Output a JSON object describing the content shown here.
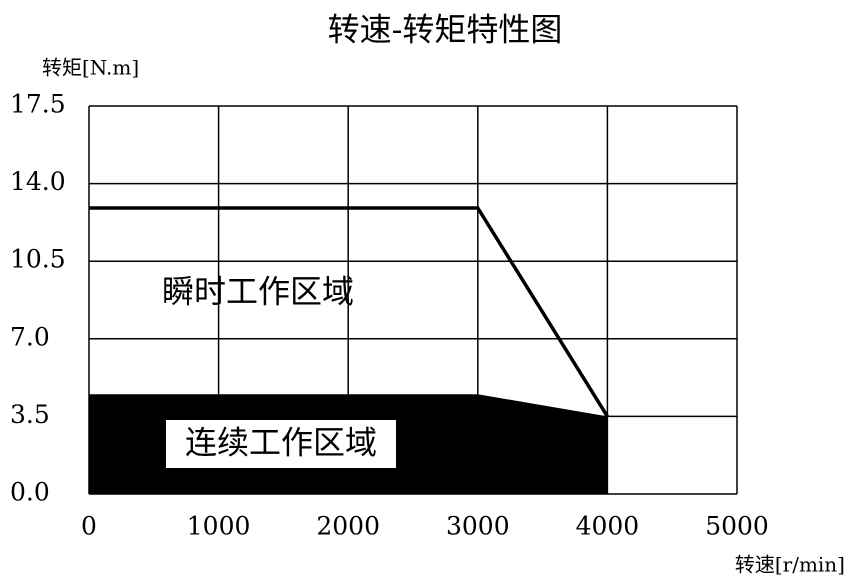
{
  "chart_data": {
    "type": "line",
    "title": "转速-转矩特性图",
    "ylabel": "转矩[N.m]",
    "xlabel": "转速[r/min]",
    "annotations": [
      "瞬时工作区域",
      "连续工作区域"
    ],
    "series": [
      {
        "color": "#000000",
        "fill": false,
        "x": [
          0,
          3000,
          4000
        ],
        "values": [
          12.9,
          12.9,
          3.5
        ]
      },
      {
        "color": "#000000",
        "fill": true,
        "x": [
          0,
          3000,
          4000
        ],
        "values": [
          4.5,
          4.5,
          3.5
        ]
      }
    ],
    "xlim": [
      0,
      5000
    ],
    "xticks": [
      0,
      1000,
      2000,
      3000,
      4000,
      5000
    ],
    "ylim": [
      0,
      17.5
    ],
    "yticks": [
      {
        "value": 0,
        "label": "0.0"
      },
      3.5,
      {
        "value": 7,
        "label": "7.0"
      },
      {
        "value": 10.5,
        "label": "10.5"
      },
      {
        "value": 14,
        "label": "14.0"
      },
      17.5
    ],
    "grid": true
  }
}
